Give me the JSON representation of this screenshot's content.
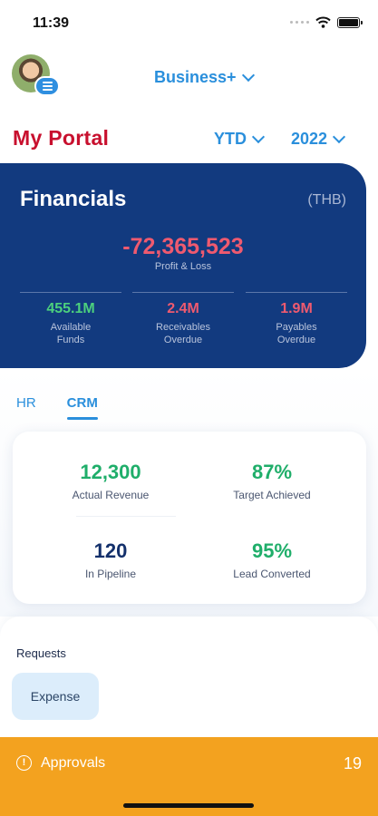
{
  "status_bar": {
    "time": "11:39"
  },
  "header": {
    "plan": "Business+",
    "portal_title": "My Portal",
    "period": "YTD",
    "year": "2022"
  },
  "financials": {
    "title": "Financials",
    "currency": "(THB)",
    "profit_loss_value": "-72,365,523",
    "profit_loss_label": "Profit & Loss",
    "metrics": [
      {
        "value": "455.1M",
        "label_line1": "Available",
        "label_line2": "Funds",
        "color": "#4cd07d"
      },
      {
        "value": "2.4M",
        "label_line1": "Receivables",
        "label_line2": "Overdue",
        "color": "#ef5a6f"
      },
      {
        "value": "1.9M",
        "label_line1": "Payables",
        "label_line2": "Overdue",
        "color": "#ef5a6f"
      }
    ]
  },
  "tabs": [
    {
      "label": "HR",
      "active": false
    },
    {
      "label": "CRM",
      "active": true
    }
  ],
  "crm": {
    "stats": [
      {
        "value": "12,300",
        "label": "Actual Revenue",
        "color": "#1fae6a"
      },
      {
        "value": "87%",
        "label": "Target Achieved",
        "color": "#1fae6a"
      },
      {
        "value": "120",
        "label": "In Pipeline",
        "color": "#13306b"
      },
      {
        "value": "95%",
        "label": "Lead Converted",
        "color": "#1fae6a"
      }
    ]
  },
  "requests": {
    "title": "Requests",
    "items": [
      "Expense"
    ]
  },
  "approvals": {
    "label": "Approvals",
    "count": "19",
    "icon": "info-icon"
  }
}
